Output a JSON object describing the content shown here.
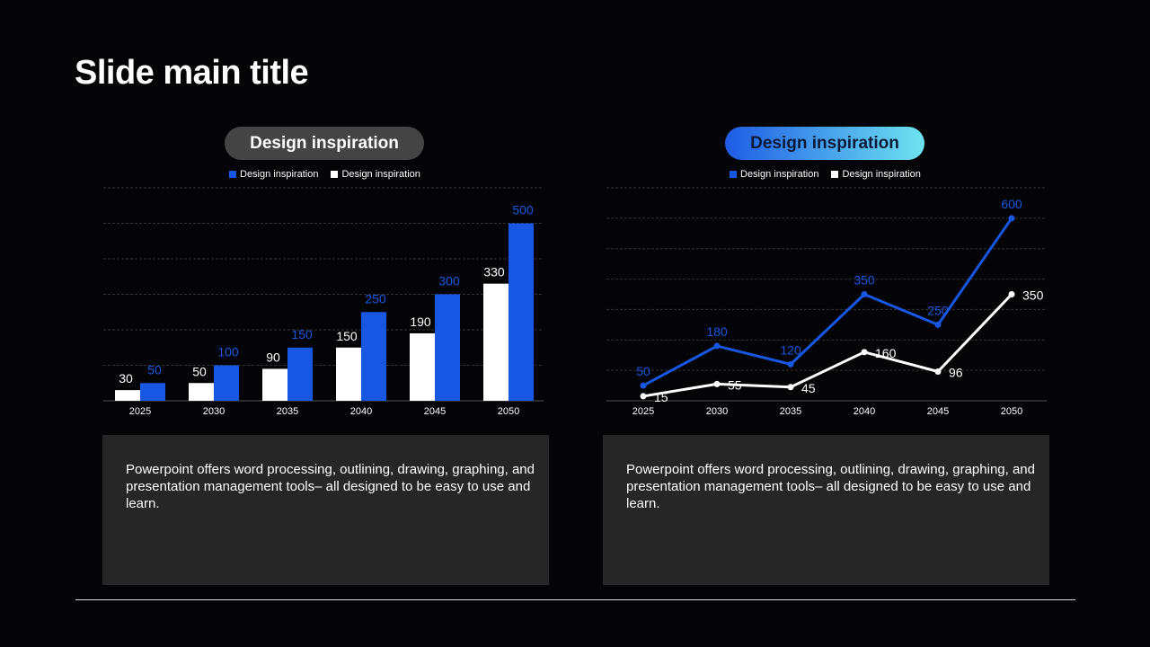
{
  "slide": {
    "title": "Slide main title"
  },
  "colors": {
    "blue": "#1857e3",
    "white": "#ffffff",
    "grid": "#3a3a3a",
    "box": "#262626"
  },
  "chart_data": [
    {
      "type": "bar",
      "title": "Design inspiration",
      "categories": [
        "2025",
        "2030",
        "2035",
        "2040",
        "2045",
        "2050"
      ],
      "series": [
        {
          "name": "Design inspiration",
          "color": "#1857e3",
          "values": [
            50,
            100,
            150,
            250,
            300,
            500
          ]
        },
        {
          "name": "Design inspiration",
          "color": "#ffffff",
          "values": [
            30,
            50,
            90,
            150,
            190,
            330
          ]
        }
      ],
      "ylim": [
        0,
        600
      ],
      "grid_step": 100,
      "grid": true,
      "legend": "top-center"
    },
    {
      "type": "line",
      "title": "Design inspiration",
      "categories": [
        "2025",
        "2030",
        "2035",
        "2040",
        "2045",
        "2050"
      ],
      "series": [
        {
          "name": "Design inspiration",
          "color": "#1857e3",
          "values": [
            50,
            180,
            120,
            350,
            250,
            600
          ]
        },
        {
          "name": "Design inspiration",
          "color": "#ffffff",
          "values": [
            15,
            55,
            45,
            160,
            96,
            350
          ]
        }
      ],
      "ylim": [
        0,
        700
      ],
      "grid_step": 100,
      "grid": true,
      "legend": "top-center"
    }
  ],
  "text_boxes": [
    "Powerpoint offers word processing, outlining, drawing, graphing, and presentation management tools– all designed to be easy to use and learn.",
    "Powerpoint offers word processing, outlining, drawing, graphing, and presentation management tools– all designed to be easy to use and learn."
  ]
}
